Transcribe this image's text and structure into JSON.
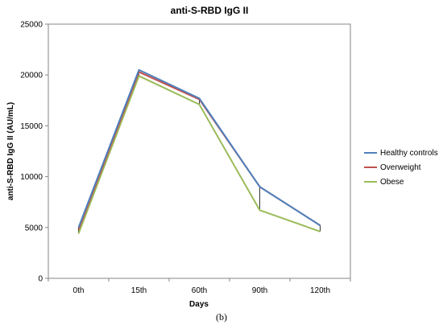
{
  "chart_data": {
    "type": "line",
    "title": "anti-S-RBD IgG II",
    "xlabel": "Days",
    "ylabel": "anti-S-RBD IgG II (AU/mL)",
    "categories": [
      "0th",
      "15th",
      "60th",
      "90th",
      "120th"
    ],
    "ylim": [
      0,
      25000
    ],
    "yticks": [
      0,
      5000,
      10000,
      15000,
      20000,
      25000
    ],
    "grid": false,
    "legend_position": "right",
    "series": [
      {
        "name": "Healthy controls",
        "color": "#4f81bd",
        "values": [
          5000,
          20500,
          17700,
          9000,
          5200
        ]
      },
      {
        "name": "Overweight",
        "color": "#c0504d",
        "values": [
          4800,
          20300,
          17600,
          9000,
          5200
        ]
      },
      {
        "name": "Obese",
        "color": "#9bbb59",
        "values": [
          4400,
          19900,
          17100,
          6700,
          4600
        ]
      }
    ]
  },
  "caption": "(b)"
}
